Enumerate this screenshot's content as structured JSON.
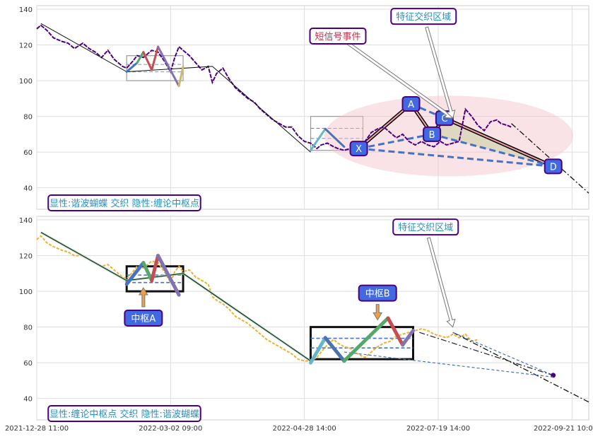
{
  "chart_data": {
    "type": "line",
    "x_ticks": [
      "2021-12-28 11:00",
      "2022-03-02 09:00",
      "2022-04-28 14:00",
      "2022-07-19 14:00",
      "2022-09-21 10:00"
    ],
    "y_ticks": [
      40,
      60,
      80,
      100,
      120,
      140
    ],
    "ylim": [
      28,
      142
    ],
    "grid": true,
    "panels": [
      {
        "panel": "top",
        "legend_label": "显性:谐波蝴蝶 交织 隐性:缠论中枢点",
        "price_series": [
          [
            0,
            129
          ],
          [
            2,
            131
          ],
          [
            5,
            128
          ],
          [
            8,
            124
          ],
          [
            12,
            122
          ],
          [
            15,
            121
          ],
          [
            18,
            118
          ],
          [
            22,
            121
          ],
          [
            25,
            118
          ],
          [
            28,
            116
          ],
          [
            31,
            113
          ],
          [
            34,
            117
          ],
          [
            37,
            112
          ],
          [
            41,
            108
          ],
          [
            43,
            107
          ],
          [
            46,
            111
          ],
          [
            48,
            114
          ],
          [
            51,
            113
          ],
          [
            55,
            117
          ],
          [
            58,
            116
          ],
          [
            61,
            111
          ],
          [
            64,
            105
          ],
          [
            66,
            113
          ],
          [
            68,
            119
          ],
          [
            70,
            117
          ],
          [
            73,
            114
          ],
          [
            76,
            110
          ],
          [
            79,
            106
          ],
          [
            82,
            108
          ],
          [
            84,
            99
          ],
          [
            86,
            104
          ],
          [
            89,
            107
          ],
          [
            92,
            101
          ],
          [
            95,
            96
          ],
          [
            98,
            93
          ],
          [
            101,
            90
          ],
          [
            104,
            88
          ],
          [
            107,
            84
          ],
          [
            110,
            81
          ],
          [
            113,
            78
          ],
          [
            116,
            76
          ],
          [
            119,
            74
          ],
          [
            122,
            74
          ],
          [
            125,
            69
          ],
          [
            128,
            66
          ],
          [
            131,
            65
          ],
          [
            134,
            62
          ],
          [
            136,
            64
          ],
          [
            139,
            65
          ],
          [
            142,
            63
          ],
          [
            144,
            62
          ],
          [
            147,
            61
          ],
          [
            150,
            62
          ],
          [
            152,
            63
          ],
          [
            155,
            64
          ],
          [
            157,
            66
          ],
          [
            160,
            71
          ],
          [
            163,
            73
          ],
          [
            166,
            74
          ],
          [
            169,
            71
          ],
          [
            172,
            68
          ],
          [
            175,
            70
          ],
          [
            178,
            66
          ],
          [
            181,
            64
          ],
          [
            184,
            66
          ],
          [
            187,
            64
          ],
          [
            190,
            63
          ],
          [
            193,
            66
          ],
          [
            196,
            64
          ],
          [
            199,
            65
          ],
          [
            202,
            66
          ],
          [
            205,
            84
          ],
          [
            208,
            80
          ],
          [
            211,
            75
          ],
          [
            214,
            72
          ],
          [
            217,
            77
          ],
          [
            220,
            78
          ],
          [
            222,
            76
          ],
          [
            225,
            75
          ],
          [
            227,
            74
          ]
        ],
        "trend_line": [
          [
            2,
            132
          ],
          [
            43,
            105
          ],
          [
            84,
            108
          ],
          [
            131,
            60
          ]
        ],
        "projection": [
          [
            227,
            76
          ],
          [
            264,
            37
          ]
        ],
        "zigzag": [
          {
            "from": [
              43,
              105
            ],
            "to": [
              48,
              110
            ],
            "color": "#4472c4"
          },
          {
            "from": [
              48,
              110
            ],
            "to": [
              51,
              116
            ],
            "color": "#55a868"
          },
          {
            "from": [
              51,
              116
            ],
            "to": [
              55,
              106
            ],
            "color": "#c44e52"
          },
          {
            "from": [
              55,
              106
            ],
            "to": [
              58,
              119
            ],
            "color": "#c44e52"
          },
          {
            "from": [
              58,
              119
            ],
            "to": [
              68,
              97
            ],
            "color": "#8172b2"
          },
          {
            "from": [
              68,
              97
            ],
            "to": [
              70,
              108
            ],
            "color": "#ccb974"
          },
          {
            "from": [
              131,
              61
            ],
            "to": [
              138,
              73
            ],
            "color": "#64b5cd"
          },
          {
            "from": [
              138,
              73
            ],
            "to": [
              147,
              63
            ],
            "color": "#4c72b0"
          }
        ],
        "center_box": [
          {
            "x0": 43,
            "x1": 70,
            "y0": 100,
            "y1": 114
          },
          {
            "x0": 131,
            "x1": 156,
            "y0": 61,
            "y1": 80
          }
        ],
        "harmonic_points": [
          {
            "label": "X",
            "x": 154,
            "y": 62
          },
          {
            "label": "A",
            "x": 179,
            "y": 87
          },
          {
            "label": "B",
            "x": 189,
            "y": 70
          },
          {
            "label": "C",
            "x": 195,
            "y": 79
          },
          {
            "label": "D",
            "x": 247,
            "y": 52
          }
        ],
        "annotations": [
          {
            "text": "短信号事件",
            "x": 144,
            "y": 125,
            "target": [
              199,
              79
            ]
          },
          {
            "text": "特征交织区域",
            "x": 185,
            "y": 136,
            "target": [
              199,
              79
            ]
          }
        ]
      },
      {
        "panel": "bottom",
        "legend_label": "显性:缠论中枢点 交织 隐性:谐波蝴蝶",
        "price_series": [
          [
            0,
            129
          ],
          [
            2,
            131
          ],
          [
            5,
            127
          ],
          [
            8,
            125
          ],
          [
            12,
            123
          ],
          [
            15,
            122
          ],
          [
            18,
            120
          ],
          [
            22,
            120
          ],
          [
            25,
            118
          ],
          [
            28,
            116
          ],
          [
            31,
            114
          ],
          [
            34,
            115
          ],
          [
            37,
            112
          ],
          [
            41,
            108
          ],
          [
            43,
            107
          ],
          [
            46,
            111
          ],
          [
            48,
            114
          ],
          [
            51,
            113
          ],
          [
            55,
            117
          ],
          [
            58,
            116
          ],
          [
            61,
            111
          ],
          [
            64,
            105
          ],
          [
            66,
            111
          ],
          [
            68,
            114
          ],
          [
            70,
            111
          ],
          [
            73,
            112
          ],
          [
            76,
            108
          ],
          [
            79,
            106
          ],
          [
            82,
            104
          ],
          [
            84,
            97
          ],
          [
            86,
            95
          ],
          [
            89,
            93
          ],
          [
            92,
            90
          ],
          [
            95,
            86
          ],
          [
            98,
            84
          ],
          [
            101,
            82
          ],
          [
            104,
            79
          ],
          [
            107,
            76
          ],
          [
            110,
            73
          ],
          [
            113,
            71
          ],
          [
            116,
            69
          ],
          [
            119,
            67
          ],
          [
            122,
            65
          ],
          [
            125,
            62
          ],
          [
            128,
            61
          ],
          [
            131,
            61
          ],
          [
            134,
            63
          ],
          [
            136,
            66
          ],
          [
            139,
            70
          ],
          [
            142,
            73
          ],
          [
            144,
            71
          ],
          [
            147,
            69
          ],
          [
            150,
            68
          ],
          [
            152,
            66
          ],
          [
            155,
            64
          ],
          [
            157,
            63
          ],
          [
            160,
            66
          ],
          [
            163,
            69
          ],
          [
            166,
            71
          ],
          [
            169,
            72
          ],
          [
            172,
            75
          ],
          [
            175,
            76
          ],
          [
            178,
            77
          ],
          [
            181,
            78
          ],
          [
            184,
            79
          ],
          [
            187,
            78
          ],
          [
            190,
            76
          ],
          [
            193,
            75
          ],
          [
            196,
            74
          ],
          [
            199,
            76
          ],
          [
            202,
            74
          ],
          [
            205,
            76
          ],
          [
            208,
            72
          ],
          [
            211,
            73
          ]
        ],
        "trend_line": [
          [
            2,
            133
          ],
          [
            43,
            106
          ],
          [
            70,
            110
          ],
          [
            131,
            61
          ]
        ],
        "projection": [
          [
            199,
            77
          ],
          [
            264,
            38
          ]
        ],
        "zigzag": [
          {
            "from": [
              43,
              104
            ],
            "to": [
              51,
              116
            ],
            "color": "#4472c4"
          },
          {
            "from": [
              51,
              116
            ],
            "to": [
              55,
              106
            ],
            "color": "#55a868"
          },
          {
            "from": [
              55,
              106
            ],
            "to": [
              58,
              120
            ],
            "color": "#c44e52"
          },
          {
            "from": [
              58,
              120
            ],
            "to": [
              68,
              98
            ],
            "color": "#8172b2"
          },
          {
            "from": [
              131,
              60
            ],
            "to": [
              138,
              74
            ],
            "color": "#64b5cd"
          },
          {
            "from": [
              138,
              74
            ],
            "to": [
              147,
              61
            ],
            "color": "#4c72b0"
          },
          {
            "from": [
              147,
              61
            ],
            "to": [
              168,
              85
            ],
            "color": "#55a868"
          },
          {
            "from": [
              168,
              85
            ],
            "to": [
              175,
              70
            ],
            "color": "#c44e52"
          },
          {
            "from": [
              175,
              70
            ],
            "to": [
              180,
              78
            ],
            "color": "#8172b2"
          }
        ],
        "center_box": [
          {
            "x0": 43,
            "x1": 70,
            "y0": 100,
            "y1": 114
          },
          {
            "x0": 131,
            "x1": 180,
            "y0": 62,
            "y1": 80
          }
        ],
        "forecast_end": [
          247,
          53
        ],
        "annotations": [
          {
            "text": "中枢A",
            "x": 51,
            "y": 85,
            "target": [
              51,
              102
            ]
          },
          {
            "text": "中枢B",
            "x": 163,
            "y": 99,
            "target": [
              163,
              84
            ]
          },
          {
            "text": "特征交织区域",
            "x": 186,
            "y": 136,
            "target": [
              199,
              80
            ]
          }
        ]
      }
    ]
  }
}
